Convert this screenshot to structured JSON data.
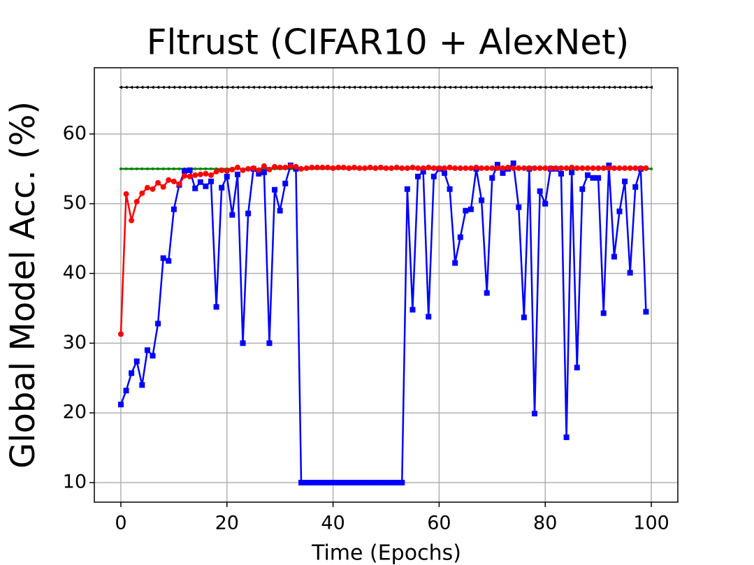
{
  "chart_data": {
    "type": "line",
    "title": "Fltrust (CIFAR10 + AlexNet)",
    "x_label": "Time (Epochs)",
    "y_label": "Global Model Acc. (%)",
    "xlim": [
      -5,
      105
    ],
    "ylim": [
      7.2,
      69.5
    ],
    "xticks": [
      0,
      20,
      40,
      60,
      80,
      100
    ],
    "yticks": [
      10,
      20,
      30,
      40,
      50,
      60
    ],
    "grid": true,
    "x": [
      0,
      1,
      2,
      3,
      4,
      5,
      6,
      7,
      8,
      9,
      10,
      11,
      12,
      13,
      14,
      15,
      16,
      17,
      18,
      19,
      20,
      21,
      22,
      23,
      24,
      25,
      26,
      27,
      28,
      29,
      30,
      31,
      32,
      33,
      34,
      35,
      36,
      37,
      38,
      39,
      40,
      41,
      42,
      43,
      44,
      45,
      46,
      47,
      48,
      49,
      50,
      51,
      52,
      53,
      54,
      55,
      56,
      57,
      58,
      59,
      60,
      61,
      62,
      63,
      64,
      65,
      66,
      67,
      68,
      69,
      70,
      71,
      72,
      73,
      74,
      75,
      76,
      77,
      78,
      79,
      80,
      81,
      82,
      83,
      84,
      85,
      86,
      87,
      88,
      89,
      90,
      91,
      92,
      93,
      94,
      95,
      96,
      97,
      98,
      99,
      100
    ],
    "series": [
      {
        "color": "#000000",
        "marker": "triangle-left",
        "values": [
          66.7,
          66.7,
          66.7,
          66.7,
          66.7,
          66.7,
          66.7,
          66.7,
          66.7,
          66.7,
          66.7,
          66.7,
          66.7,
          66.7,
          66.7,
          66.7,
          66.7,
          66.7,
          66.7,
          66.7,
          66.7,
          66.7,
          66.7,
          66.7,
          66.7,
          66.7,
          66.7,
          66.7,
          66.7,
          66.7,
          66.7,
          66.7,
          66.7,
          66.7,
          66.7,
          66.7,
          66.7,
          66.7,
          66.7,
          66.7,
          66.7,
          66.7,
          66.7,
          66.7,
          66.7,
          66.7,
          66.7,
          66.7,
          66.7,
          66.7,
          66.7,
          66.7,
          66.7,
          66.7,
          66.7,
          66.7,
          66.7,
          66.7,
          66.7,
          66.7,
          66.7,
          66.7,
          66.7,
          66.7,
          66.7,
          66.7,
          66.7,
          66.7,
          66.7,
          66.7,
          66.7,
          66.7,
          66.7,
          66.7,
          66.7,
          66.7,
          66.7,
          66.7,
          66.7,
          66.7,
          66.7,
          66.7,
          66.7,
          66.7,
          66.7,
          66.7,
          66.7,
          66.7,
          66.7,
          66.7,
          66.7,
          66.7,
          66.7,
          66.7,
          66.7,
          66.7,
          66.7,
          66.7,
          66.7,
          66.7,
          66.7
        ]
      },
      {
        "color": "#008000",
        "marker": "dot",
        "values": [
          55,
          55,
          55,
          55,
          55,
          55,
          55,
          55,
          55,
          55,
          55,
          55,
          55,
          55,
          55,
          55,
          55,
          55,
          55,
          55,
          55,
          55,
          55,
          55,
          55,
          55,
          55,
          55,
          55,
          55,
          55,
          55,
          55,
          55,
          55,
          55,
          55,
          55,
          55,
          55,
          55,
          55,
          55,
          55,
          55,
          55,
          55,
          55,
          55,
          55,
          55,
          55,
          55,
          55,
          55,
          55,
          55,
          55,
          55,
          55,
          55,
          55,
          55,
          55,
          55,
          55,
          55,
          55,
          55,
          55,
          55,
          55,
          55,
          55,
          55,
          55,
          55,
          55,
          55,
          55,
          55,
          55,
          55,
          55,
          55,
          55,
          55,
          55,
          55,
          55,
          55,
          55,
          55,
          55,
          55,
          55,
          55,
          55,
          55,
          55,
          55
        ]
      },
      {
        "color": "#0000ff",
        "marker": "square",
        "values": [
          21.2,
          23.2,
          25.7,
          27.4,
          24,
          29,
          28.2,
          32.8,
          42.2,
          41.8,
          49.2,
          52.7,
          54.7,
          54.8,
          52.2,
          53.1,
          52.5,
          53.2,
          35.2,
          52.3,
          53.9,
          48.4,
          54.2,
          30,
          48.6,
          55,
          54.3,
          54.5,
          30,
          52,
          49,
          52.9,
          55.5,
          55,
          10,
          10,
          10,
          10,
          10,
          10,
          10,
          10,
          10,
          10,
          10,
          10,
          10,
          10,
          10,
          10,
          10,
          10,
          10,
          10,
          52.1,
          34.8,
          53.9,
          54.6,
          33.8,
          53.9,
          55,
          54.4,
          52.1,
          41.5,
          45.2,
          49,
          49.2,
          55,
          50.5,
          37.2,
          53.7,
          55.6,
          54.4,
          55,
          55.8,
          49.5,
          33.7,
          55,
          19.9,
          51.8,
          50,
          55,
          55,
          54.3,
          16.5,
          54.5,
          26.5,
          52.1,
          54.1,
          53.7,
          53.7,
          34.3,
          55.5,
          42.4,
          48.9,
          53.2,
          40.1,
          52.4,
          55,
          34.5,
          null
        ]
      },
      {
        "color": "#ff0000",
        "marker": "circle",
        "values": [
          31.3,
          51.4,
          47.6,
          50.3,
          51.5,
          52.3,
          52.1,
          53,
          52.4,
          53.4,
          53.2,
          52.8,
          54,
          53.9,
          54.1,
          54.2,
          54.3,
          54.1,
          54.6,
          54.8,
          54.7,
          54.9,
          55.2,
          54.8,
          55,
          55.1,
          54.8,
          55.4,
          54.9,
          55.3,
          55.2,
          55.2,
          55.4,
          55.3,
          55,
          55.1,
          55.2,
          55.2,
          55.2,
          55.2,
          55.1,
          55.2,
          55.2,
          55.1,
          55.2,
          55.1,
          55.1,
          55.2,
          55.1,
          55.2,
          55.1,
          55.1,
          55.2,
          55.1,
          55.1,
          55.2,
          55.1,
          55.1,
          55.2,
          55.1,
          55.1,
          55.1,
          55.2,
          55.1,
          55.1,
          55.1,
          55.1,
          55.2,
          55.1,
          55.1,
          55.1,
          55.1,
          55.1,
          55.2,
          55.1,
          55.1,
          55.1,
          55.1,
          55.1,
          55.1,
          55.1,
          55.1,
          55.1,
          55.1,
          55.1,
          55.2,
          55.1,
          55.1,
          55.1,
          55.1,
          55.1,
          55.1,
          55.1,
          55.1,
          55.1,
          55.1,
          55.1,
          55.1,
          55.1,
          55.1,
          null
        ]
      }
    ]
  }
}
